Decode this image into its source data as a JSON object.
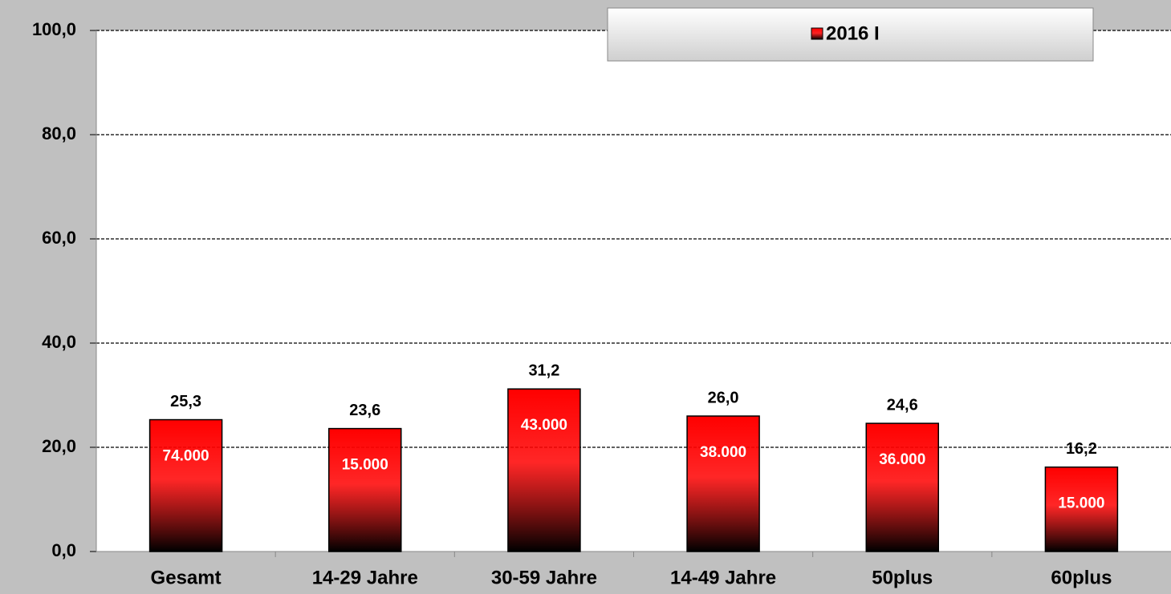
{
  "chart_data": {
    "type": "bar",
    "categories": [
      "Gesamt",
      "14-29 Jahre",
      "30-59 Jahre",
      "14-49 Jahre",
      "50plus",
      "60plus"
    ],
    "series": [
      {
        "name": "2016 I",
        "color": "#ff0000",
        "values": [
          25.3,
          23.6,
          31.2,
          26.0,
          24.6,
          16.2
        ],
        "value_labels": [
          "25,3",
          "23,6",
          "31,2",
          "26,0",
          "24,6",
          "16,2"
        ],
        "bar_labels": [
          "74.000",
          "15.000",
          "43.000",
          "38.000",
          "36.000",
          "15.000"
        ]
      }
    ],
    "ylim": [
      0,
      100
    ],
    "yticks": [
      {
        "value": 0,
        "label": "0,0"
      },
      {
        "value": 20,
        "label": "20,0"
      },
      {
        "value": 40,
        "label": "40,0"
      },
      {
        "value": 60,
        "label": "60,0"
      },
      {
        "value": 80,
        "label": "80,0"
      },
      {
        "value": 100,
        "label": "100,0"
      }
    ],
    "grid": true
  }
}
